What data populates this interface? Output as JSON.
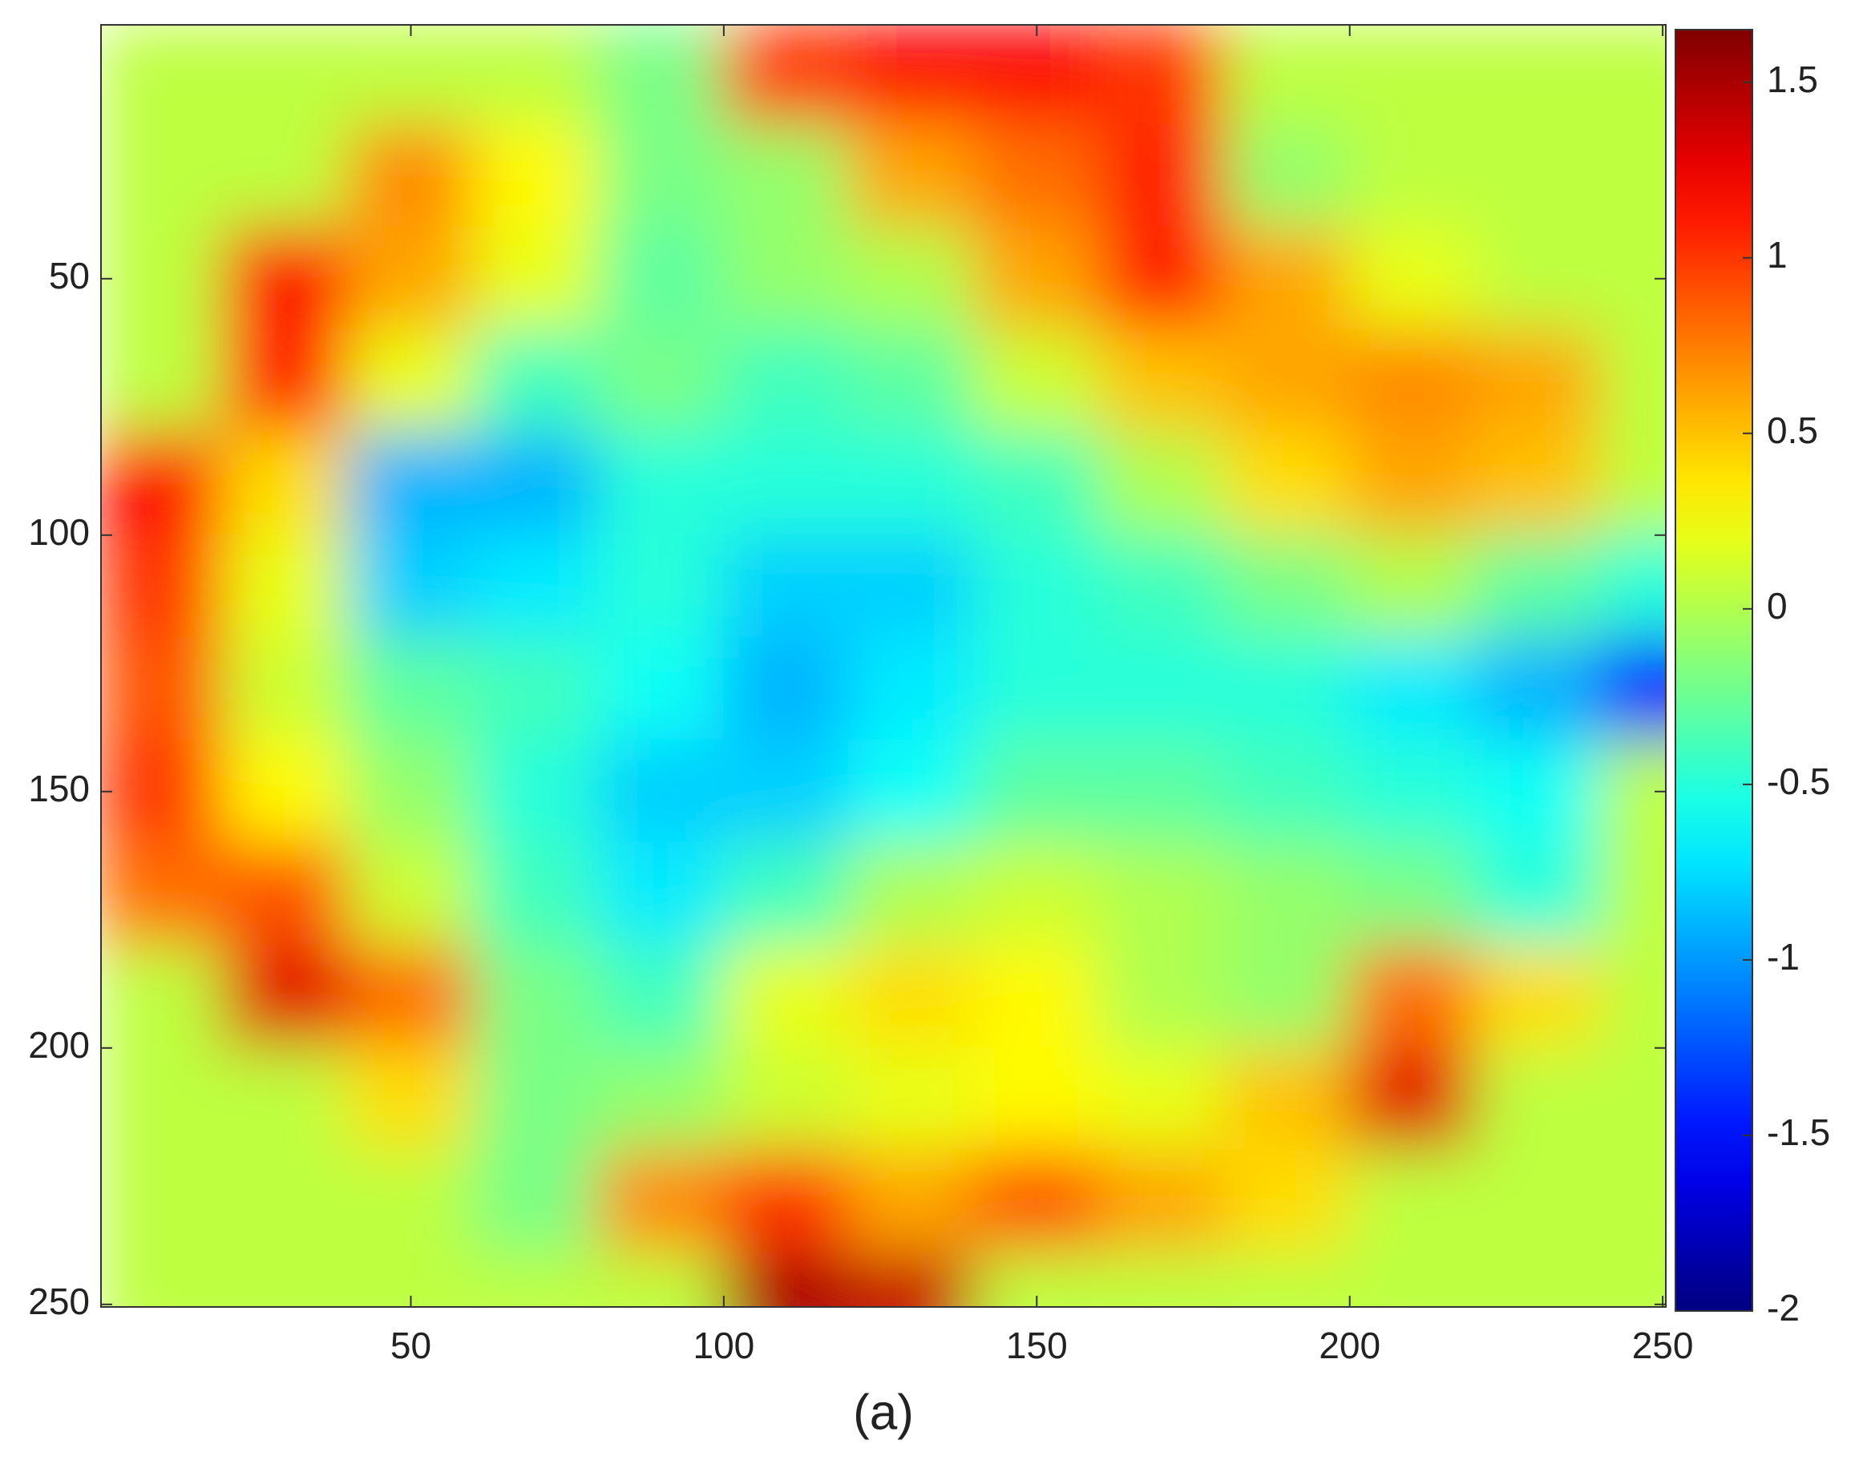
{
  "chart_data": {
    "type": "heatmap",
    "caption": "(a)",
    "colormap": "jet",
    "x": [
      10,
      30,
      50,
      70,
      90,
      110,
      130,
      150,
      170,
      190,
      210,
      230,
      250
    ],
    "y": [
      10,
      30,
      50,
      70,
      90,
      110,
      130,
      150,
      170,
      190,
      210,
      230,
      250
    ],
    "z": [
      [
        0.05,
        0.05,
        0.05,
        0.05,
        -0.2,
        1.0,
        1.2,
        1.2,
        1.0,
        0.05,
        0.05,
        0.05,
        0.05
      ],
      [
        0.05,
        0.05,
        0.7,
        0.3,
        -0.2,
        -0.1,
        0.6,
        0.8,
        1.1,
        -0.1,
        0.05,
        0.05,
        0.05
      ],
      [
        0.05,
        1.2,
        0.6,
        0.2,
        -0.3,
        -0.1,
        0.0,
        0.6,
        1.1,
        0.6,
        0.2,
        0.05,
        0.05
      ],
      [
        0.05,
        1.1,
        0.2,
        -0.4,
        -0.2,
        -0.4,
        -0.3,
        0.1,
        0.5,
        0.6,
        0.7,
        0.6,
        0.05
      ],
      [
        1.2,
        0.4,
        -0.9,
        -0.9,
        -0.5,
        -0.5,
        -0.5,
        -0.4,
        0.0,
        0.4,
        0.6,
        0.5,
        0.05
      ],
      [
        1.0,
        0.2,
        -0.8,
        -0.7,
        -0.5,
        -0.8,
        -0.8,
        -0.5,
        -0.4,
        -0.2,
        0.0,
        -0.3,
        -0.5
      ],
      [
        0.9,
        0.1,
        -0.3,
        -0.4,
        -0.6,
        -0.9,
        -0.7,
        -0.5,
        -0.5,
        -0.5,
        -0.7,
        -0.9,
        -1.5
      ],
      [
        1.0,
        0.3,
        -0.1,
        -0.5,
        -0.8,
        -0.8,
        -0.6,
        -0.3,
        -0.3,
        -0.4,
        -0.5,
        -0.6,
        0.05
      ],
      [
        0.8,
        0.9,
        0.1,
        -0.4,
        -0.7,
        -0.4,
        0.0,
        0.1,
        0.0,
        -0.1,
        -0.2,
        -0.5,
        0.05
      ],
      [
        0.05,
        1.3,
        0.8,
        -0.2,
        -0.4,
        0.2,
        0.4,
        0.3,
        0.0,
        -0.1,
        0.8,
        0.4,
        0.05
      ],
      [
        0.05,
        0.05,
        0.4,
        -0.2,
        -0.1,
        0.1,
        0.2,
        0.3,
        0.2,
        0.5,
        1.3,
        0.05,
        0.05
      ],
      [
        0.05,
        0.05,
        0.05,
        -0.2,
        0.7,
        1.0,
        0.6,
        0.9,
        0.6,
        0.4,
        0.05,
        0.05,
        0.05
      ],
      [
        0.05,
        0.05,
        0.05,
        0.05,
        0.05,
        1.5,
        1.4,
        0.05,
        0.05,
        0.05,
        0.05,
        0.05,
        0.05
      ]
    ],
    "xlim": [
      0.5,
      250.5
    ],
    "ylim": [
      0.5,
      250.5
    ],
    "y_reversed": true,
    "xticks": [
      50,
      100,
      150,
      200,
      250
    ],
    "yticks": [
      50,
      100,
      150,
      200,
      250
    ],
    "clim": [
      -2,
      1.65
    ],
    "cticks": [
      -2,
      -1.5,
      -1,
      -0.5,
      0,
      0.5,
      1,
      1.5
    ]
  }
}
